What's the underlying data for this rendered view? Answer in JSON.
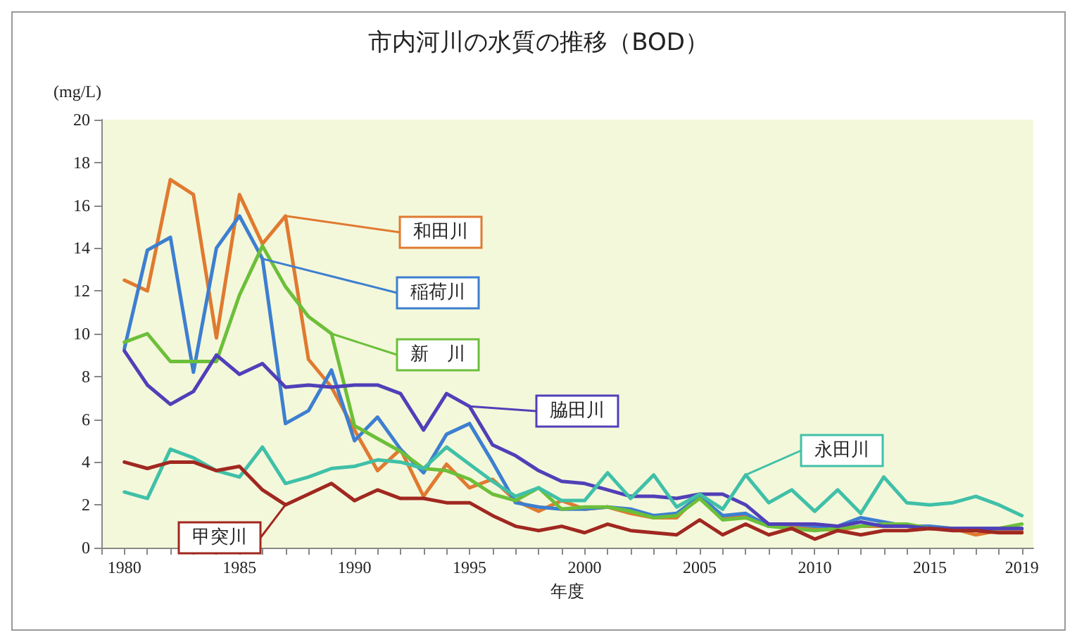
{
  "chart_data": {
    "type": "line",
    "title": "市内河川の水質の推移（BOD）",
    "xlabel": "年度",
    "ylabel": "(mg/L)",
    "x": [
      1980,
      1981,
      1982,
      1983,
      1984,
      1985,
      1986,
      1987,
      1988,
      1989,
      1990,
      1991,
      1992,
      1993,
      1994,
      1995,
      1996,
      1997,
      1998,
      1999,
      2000,
      2001,
      2002,
      2003,
      2004,
      2005,
      2006,
      2007,
      2008,
      2009,
      2010,
      2011,
      2012,
      2013,
      2014,
      2015,
      2016,
      2017,
      2018,
      2019
    ],
    "xlim": [
      1979,
      2019.5
    ],
    "xticks": [
      1980,
      1985,
      1990,
      1995,
      2000,
      2005,
      2010,
      2015,
      2019
    ],
    "ylim": [
      0,
      20
    ],
    "yticks": [
      0,
      2,
      4,
      6,
      8,
      10,
      12,
      14,
      16,
      18,
      20
    ],
    "grid": false,
    "legend": "bottom right",
    "marker": "none",
    "line_style": "solid",
    "series": [
      {
        "name": "和田川",
        "color": "#e07a30",
        "values": [
          12.5,
          12,
          17.2,
          16.5,
          9.8,
          16.5,
          14.2,
          15.5,
          8.8,
          7.5,
          5.5,
          3.6,
          4.6,
          2.4,
          3.9,
          2.8,
          3.2,
          2.2,
          1.7,
          2.2,
          1.8,
          1.9,
          1.6,
          1.4,
          1.4,
          2.5,
          1.4,
          1.5,
          1.1,
          1.0,
          0.9,
          0.8,
          1.0,
          1.0,
          1.0,
          0.9,
          0.9,
          0.6,
          0.8,
          0.8
        ]
      },
      {
        "name": "稲荷川",
        "color": "#3d7fd0",
        "values": [
          9.3,
          13.9,
          14.5,
          8.2,
          14.0,
          15.5,
          13.5,
          5.8,
          6.4,
          8.3,
          5.0,
          6.1,
          4.6,
          3.5,
          5.3,
          5.8,
          4.0,
          2.1,
          1.9,
          1.8,
          1.8,
          1.9,
          1.8,
          1.5,
          1.6,
          2.4,
          1.5,
          1.6,
          1.0,
          1.1,
          1.0,
          1.0,
          1.4,
          1.2,
          1.0,
          1.0,
          0.9,
          0.9,
          0.9,
          0.9
        ]
      },
      {
        "name": "新　川",
        "color": "#6cbf3a",
        "values": [
          9.6,
          10.0,
          8.7,
          8.7,
          8.7,
          11.8,
          14.1,
          12.2,
          10.8,
          10.0,
          5.7,
          5.1,
          4.5,
          3.7,
          3.6,
          3.2,
          2.5,
          2.2,
          2.8,
          1.8,
          1.9,
          1.9,
          1.7,
          1.4,
          1.5,
          2.3,
          1.3,
          1.4,
          1.0,
          0.9,
          0.8,
          0.9,
          1.0,
          1.1,
          1.1,
          0.9,
          0.9,
          0.8,
          0.9,
          1.1
        ]
      },
      {
        "name": "脇田川",
        "color": "#5040b8",
        "values": [
          9.2,
          7.6,
          6.7,
          7.3,
          9.0,
          8.1,
          8.6,
          7.5,
          7.6,
          7.5,
          7.6,
          7.6,
          7.2,
          5.5,
          7.2,
          6.6,
          4.8,
          4.3,
          3.6,
          3.1,
          3.0,
          2.7,
          2.4,
          2.4,
          2.3,
          2.5,
          2.5,
          2.0,
          1.1,
          1.1,
          1.1,
          1.0,
          1.2,
          1.0,
          1.0,
          0.9,
          0.9,
          0.9,
          0.9,
          0.9
        ]
      },
      {
        "name": "永田川",
        "color": "#40c0a8",
        "values": [
          2.6,
          2.3,
          4.6,
          4.2,
          3.6,
          3.3,
          4.7,
          3.0,
          3.3,
          3.7,
          3.8,
          4.1,
          4.0,
          3.7,
          4.7,
          3.9,
          3.1,
          2.4,
          2.8,
          2.2,
          2.2,
          3.5,
          2.3,
          3.4,
          1.9,
          2.5,
          1.8,
          3.4,
          2.1,
          2.7,
          1.7,
          2.7,
          1.6,
          3.3,
          2.1,
          2.0,
          2.1,
          2.4,
          2.0,
          1.5
        ]
      },
      {
        "name": "甲突川",
        "color": "#a02820",
        "values": [
          4.0,
          3.7,
          4.0,
          4.0,
          3.6,
          3.8,
          2.7,
          2.0,
          2.5,
          3.0,
          2.2,
          2.7,
          2.3,
          2.3,
          2.1,
          2.1,
          1.5,
          1.0,
          0.8,
          1.0,
          0.7,
          1.1,
          0.8,
          0.7,
          0.6,
          1.3,
          0.6,
          1.1,
          0.6,
          0.9,
          0.4,
          0.8,
          0.6,
          0.8,
          0.8,
          0.9,
          0.8,
          0.8,
          0.7,
          0.7
        ]
      }
    ]
  }
}
